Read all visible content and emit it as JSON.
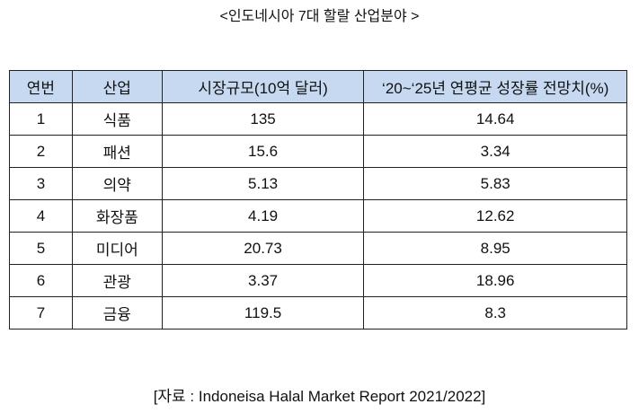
{
  "title": "<인도네시아 7대 할랄 산업분야 >",
  "table": {
    "header": [
      "연번",
      "산업",
      "시장규모(10억 달러)",
      "‘20~‘25년 연평균 성장률 전망치(%)"
    ],
    "rows": [
      [
        "1",
        "식품",
        "135",
        "14.64"
      ],
      [
        "2",
        "패션",
        "15.6",
        "3.34"
      ],
      [
        "3",
        "의약",
        "5.13",
        "5.83"
      ],
      [
        "4",
        "화장품",
        "4.19",
        "12.62"
      ],
      [
        "5",
        "미디어",
        "20.73",
        "8.95"
      ],
      [
        "6",
        "관광",
        "3.37",
        "18.96"
      ],
      [
        "7",
        "금융",
        "119.5",
        "8.3"
      ]
    ]
  },
  "source": "[자료 : Indoneisa Halal Market Report 2021/2022]"
}
